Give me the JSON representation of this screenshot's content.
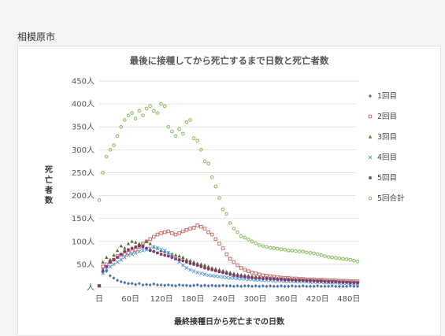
{
  "page": {
    "header": "相模原市"
  },
  "chart_data": {
    "type": "scatter",
    "title": "最後に接種してから死亡するまで日数と死亡者数",
    "xlabel": "最終接種日から死亡までの日数",
    "ylabel": "死亡者数",
    "xlim": [
      0,
      500
    ],
    "ylim": [
      0,
      450
    ],
    "x_ticks": [
      0,
      60,
      120,
      180,
      240,
      300,
      360,
      420,
      480
    ],
    "x_tick_labels": [
      "日",
      "60日",
      "120日",
      "180日",
      "240日",
      "300日",
      "360日",
      "420日",
      "480日"
    ],
    "y_ticks": [
      0,
      50,
      100,
      150,
      200,
      250,
      300,
      350,
      400,
      450
    ],
    "y_tick_labels": [
      "人",
      "50人",
      "100人",
      "150人",
      "200人",
      "250人",
      "300人",
      "350人",
      "400人",
      "450人"
    ],
    "legend_position": "top-right",
    "series": [
      {
        "name": "1回目",
        "color": "#4a6fa5",
        "marker": "diamond",
        "x": [
          0,
          7,
          14,
          21,
          28,
          35,
          42,
          49,
          56,
          63,
          70,
          77,
          84,
          91,
          98,
          105,
          112,
          119,
          126,
          133,
          140,
          147,
          154,
          161,
          168,
          175,
          182,
          189,
          196,
          203,
          210,
          217,
          224,
          231,
          238,
          245,
          252,
          259,
          266,
          273,
          280,
          287,
          294,
          301,
          308,
          315,
          322,
          329,
          336,
          343,
          350,
          357,
          364,
          371,
          378,
          385,
          392,
          399,
          406,
          413,
          420,
          427,
          434,
          441,
          448,
          455,
          462,
          469,
          476,
          483,
          490,
          497
        ],
        "y": [
          3,
          40,
          35,
          25,
          20,
          15,
          12,
          10,
          8,
          8,
          6,
          8,
          5,
          6,
          5,
          7,
          5,
          5,
          4,
          5,
          4,
          3,
          5,
          4,
          4,
          3,
          4,
          5,
          3,
          4,
          3,
          4,
          3,
          3,
          4,
          3,
          3,
          2,
          3,
          2,
          3,
          3,
          2,
          3,
          2,
          3,
          2,
          3,
          2,
          2,
          3,
          2,
          2,
          3,
          2,
          2,
          3,
          2,
          2,
          2,
          3,
          2,
          2,
          2,
          3,
          2,
          2,
          2,
          2,
          3,
          2,
          2
        ]
      },
      {
        "name": "2回目",
        "color": "#c9706a",
        "marker": "square",
        "x": [
          0,
          7,
          14,
          21,
          28,
          35,
          42,
          49,
          56,
          63,
          70,
          77,
          84,
          91,
          98,
          105,
          112,
          119,
          126,
          133,
          140,
          147,
          154,
          161,
          168,
          175,
          182,
          189,
          196,
          203,
          210,
          217,
          224,
          231,
          238,
          245,
          252,
          259,
          266,
          273,
          280,
          287,
          294,
          301,
          308,
          315,
          322,
          329,
          336,
          343,
          350,
          357,
          364,
          371,
          378,
          385,
          392,
          399,
          406,
          413,
          420,
          427,
          434,
          441,
          448,
          455,
          462,
          469,
          476,
          483,
          490,
          497
        ],
        "y": [
          3,
          45,
          50,
          55,
          60,
          68,
          70,
          72,
          75,
          78,
          82,
          88,
          95,
          100,
          105,
          110,
          115,
          118,
          120,
          122,
          118,
          115,
          118,
          122,
          125,
          128,
          130,
          135,
          132,
          128,
          120,
          115,
          105,
          95,
          85,
          72,
          62,
          55,
          48,
          42,
          38,
          35,
          32,
          30,
          28,
          26,
          25,
          24,
          23,
          22,
          21,
          20,
          20,
          19,
          19,
          18,
          18,
          17,
          17,
          17,
          16,
          16,
          16,
          15,
          15,
          15,
          14,
          14,
          14,
          13,
          13,
          13
        ]
      },
      {
        "name": "3回目",
        "color": "#5a6b2f",
        "marker": "triangle",
        "x": [
          0,
          7,
          14,
          21,
          28,
          35,
          42,
          49,
          56,
          63,
          70,
          77,
          84,
          91,
          98,
          105,
          112,
          119,
          126,
          133,
          140,
          147,
          154,
          161,
          168,
          175,
          182,
          189,
          196,
          203,
          210,
          217,
          224,
          231,
          238,
          245,
          252,
          259,
          266,
          273,
          280,
          287,
          294,
          301,
          308,
          315,
          322,
          329,
          336,
          343,
          350,
          357,
          364,
          371,
          378,
          385,
          392,
          399,
          406,
          413,
          420,
          427,
          434,
          441,
          448,
          455,
          462,
          469,
          476,
          483,
          490,
          497
        ],
        "y": [
          3,
          55,
          65,
          60,
          70,
          80,
          90,
          85,
          95,
          100,
          98,
          95,
          92,
          100,
          95,
          88,
          85,
          80,
          78,
          75,
          72,
          70,
          68,
          65,
          60,
          58,
          55,
          52,
          50,
          48,
          45,
          42,
          40,
          38,
          36,
          34,
          32,
          30,
          28,
          27,
          26,
          25,
          24,
          23,
          22,
          21,
          21,
          20,
          20,
          19,
          19,
          18,
          18,
          17,
          17,
          17,
          16,
          16,
          16,
          15,
          15,
          15,
          14,
          14,
          14,
          13,
          13,
          13,
          12,
          12,
          12,
          11
        ]
      },
      {
        "name": "4回目",
        "color": "#5b9bd5",
        "marker": "x",
        "x": [
          0,
          7,
          14,
          21,
          28,
          35,
          42,
          49,
          56,
          63,
          70,
          77,
          84,
          91,
          98,
          105,
          112,
          119,
          126,
          133,
          140,
          147,
          154,
          161,
          168,
          175,
          182,
          189,
          196,
          203,
          210,
          217,
          224,
          231,
          238,
          245,
          252,
          259,
          266,
          273,
          280,
          287,
          294,
          301,
          308,
          315,
          322,
          329,
          336,
          343,
          350,
          357,
          364,
          371,
          378,
          385,
          392,
          399,
          406,
          413,
          420,
          427,
          434,
          441,
          448,
          455,
          462,
          469,
          476,
          483,
          490,
          497
        ],
        "y": [
          3,
          30,
          40,
          45,
          50,
          55,
          60,
          65,
          70,
          72,
          75,
          78,
          80,
          82,
          85,
          88,
          85,
          82,
          80,
          75,
          70,
          62,
          55,
          48,
          42,
          38,
          35,
          32,
          30,
          28,
          26,
          25,
          24,
          23,
          22,
          21,
          20,
          20,
          19,
          18,
          18,
          17,
          17,
          16,
          16,
          15,
          15,
          15,
          14,
          14,
          14,
          13,
          13,
          13,
          12,
          12,
          12,
          12,
          11,
          11,
          11,
          11,
          10,
          10,
          10,
          10,
          9,
          9,
          9,
          9,
          8,
          8
        ]
      },
      {
        "name": "5回目",
        "color": "#7a3b6e",
        "marker": "star",
        "x": [
          0,
          7,
          14,
          21,
          28,
          35,
          42,
          49,
          56,
          63,
          70,
          77,
          84,
          91,
          98,
          105,
          112,
          119,
          126,
          133,
          140,
          147,
          154,
          161,
          168,
          175,
          182,
          189,
          196,
          203,
          210,
          217,
          224,
          231,
          238,
          245,
          252,
          259,
          266,
          273,
          280,
          287,
          294,
          301,
          308,
          315,
          322,
          329,
          336,
          343,
          350,
          357,
          364,
          371,
          378,
          385,
          392,
          399,
          406,
          413,
          420,
          427,
          434,
          441,
          448,
          455,
          462,
          469,
          476,
          483,
          490,
          497
        ],
        "y": [
          3,
          35,
          45,
          55,
          60,
          65,
          72,
          78,
          82,
          85,
          88,
          90,
          88,
          85,
          80,
          78,
          75,
          72,
          70,
          68,
          65,
          62,
          60,
          58,
          55,
          52,
          50,
          48,
          45,
          42,
          40,
          38,
          36,
          34,
          32,
          30,
          28,
          26,
          25,
          24,
          23,
          22,
          21,
          20,
          20,
          19,
          19,
          18,
          18,
          17,
          17,
          16,
          16,
          16,
          15,
          15,
          15,
          14,
          14,
          14,
          13,
          13,
          13,
          12,
          12,
          12,
          11,
          11,
          11,
          10,
          10,
          10
        ]
      },
      {
        "name": "5回合計",
        "color": "#8fbe6a",
        "marker": "circle",
        "x": [
          0,
          7,
          14,
          21,
          28,
          35,
          42,
          49,
          56,
          63,
          70,
          77,
          84,
          91,
          98,
          105,
          112,
          119,
          126,
          133,
          140,
          147,
          154,
          161,
          168,
          175,
          182,
          189,
          196,
          203,
          210,
          217,
          224,
          231,
          238,
          245,
          252,
          259,
          266,
          273,
          280,
          287,
          294,
          301,
          308,
          315,
          322,
          329,
          336,
          343,
          350,
          357,
          364,
          371,
          378,
          385,
          392,
          399,
          406,
          413,
          420,
          427,
          434,
          441,
          448,
          455,
          462,
          469,
          476,
          483,
          490,
          497
        ],
        "y": [
          190,
          250,
          285,
          300,
          310,
          330,
          350,
          365,
          375,
          380,
          368,
          385,
          375,
          390,
          395,
          385,
          380,
          400,
          395,
          350,
          340,
          330,
          345,
          335,
          360,
          365,
          325,
          320,
          300,
          275,
          270,
          240,
          220,
          195,
          170,
          160,
          140,
          128,
          120,
          112,
          108,
          104,
          100,
          96,
          92,
          90,
          88,
          86,
          85,
          84,
          83,
          82,
          80,
          80,
          79,
          78,
          78,
          76,
          75,
          74,
          72,
          70,
          68,
          66,
          65,
          64,
          63,
          62,
          61,
          60,
          58,
          56
        ]
      }
    ]
  }
}
